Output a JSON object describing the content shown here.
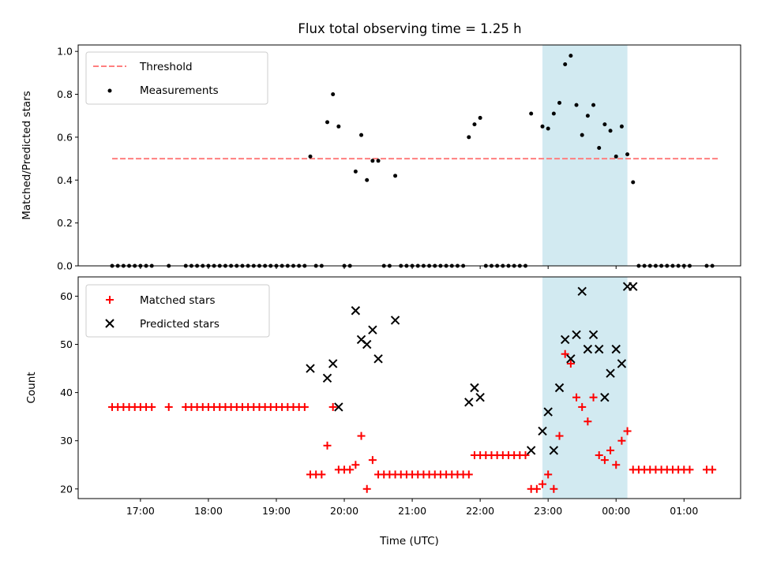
{
  "figure": {
    "title": "Flux total observing time = 1.25 h"
  },
  "chart_data": [
    {
      "type": "scatter",
      "panel": "top",
      "ylabel": "Matched/Predicted stars",
      "xlabel": "",
      "ylim": [
        0,
        1.03
      ],
      "yticks": [
        0.0,
        0.2,
        0.4,
        0.6,
        0.8,
        1.0
      ],
      "yticklabels": [
        "0.0",
        "0.2",
        "0.4",
        "0.6",
        "0.8",
        "1.0"
      ],
      "legend_position": "top-left",
      "threshold": {
        "name": "Threshold",
        "value": 0.5,
        "x_start": "16:35",
        "x_end": "01:30",
        "color": "#ff7f7f"
      },
      "series": [
        {
          "name": "Measurements",
          "marker": "dot",
          "color": "#000000",
          "points": [
            [
              "16:35",
              0
            ],
            [
              "16:40",
              0
            ],
            [
              "16:45",
              0
            ],
            [
              "16:50",
              0
            ],
            [
              "16:55",
              0
            ],
            [
              "17:00",
              0
            ],
            [
              "17:05",
              0
            ],
            [
              "17:10",
              0
            ],
            [
              "17:25",
              0
            ],
            [
              "17:40",
              0
            ],
            [
              "17:45",
              0
            ],
            [
              "17:50",
              0
            ],
            [
              "17:55",
              0
            ],
            [
              "18:00",
              0
            ],
            [
              "18:05",
              0
            ],
            [
              "18:10",
              0
            ],
            [
              "18:15",
              0
            ],
            [
              "18:20",
              0
            ],
            [
              "18:25",
              0
            ],
            [
              "18:30",
              0
            ],
            [
              "18:35",
              0
            ],
            [
              "18:40",
              0
            ],
            [
              "18:45",
              0
            ],
            [
              "18:50",
              0
            ],
            [
              "18:55",
              0
            ],
            [
              "19:00",
              0
            ],
            [
              "19:05",
              0
            ],
            [
              "19:10",
              0
            ],
            [
              "19:15",
              0
            ],
            [
              "19:20",
              0
            ],
            [
              "19:25",
              0
            ],
            [
              "19:30",
              0.51
            ],
            [
              "19:35",
              0
            ],
            [
              "19:40",
              0
            ],
            [
              "19:45",
              0.67
            ],
            [
              "19:50",
              0.8
            ],
            [
              "19:55",
              0.65
            ],
            [
              "20:00",
              0
            ],
            [
              "20:05",
              0
            ],
            [
              "20:10",
              0.44
            ],
            [
              "20:15",
              0.61
            ],
            [
              "20:20",
              0.4
            ],
            [
              "20:25",
              0.49
            ],
            [
              "20:30",
              0.49
            ],
            [
              "20:35",
              0
            ],
            [
              "20:40",
              0
            ],
            [
              "20:45",
              0.42
            ],
            [
              "20:50",
              0
            ],
            [
              "20:55",
              0
            ],
            [
              "21:00",
              0
            ],
            [
              "21:05",
              0
            ],
            [
              "21:10",
              0
            ],
            [
              "21:15",
              0
            ],
            [
              "21:20",
              0
            ],
            [
              "21:25",
              0
            ],
            [
              "21:30",
              0
            ],
            [
              "21:35",
              0
            ],
            [
              "21:40",
              0
            ],
            [
              "21:45",
              0
            ],
            [
              "21:50",
              0.6
            ],
            [
              "21:55",
              0.66
            ],
            [
              "22:00",
              0.69
            ],
            [
              "22:05",
              0
            ],
            [
              "22:10",
              0
            ],
            [
              "22:15",
              0
            ],
            [
              "22:20",
              0
            ],
            [
              "22:25",
              0
            ],
            [
              "22:30",
              0
            ],
            [
              "22:35",
              0
            ],
            [
              "22:40",
              0
            ],
            [
              "22:45",
              0.71
            ],
            [
              "22:55",
              0.65
            ],
            [
              "23:00",
              0.64
            ],
            [
              "23:05",
              0.71
            ],
            [
              "23:10",
              0.76
            ],
            [
              "23:15",
              0.94
            ],
            [
              "23:20",
              0.98
            ],
            [
              "23:25",
              0.75
            ],
            [
              "23:30",
              0.61
            ],
            [
              "23:35",
              0.7
            ],
            [
              "23:40",
              0.75
            ],
            [
              "23:45",
              0.55
            ],
            [
              "23:50",
              0.66
            ],
            [
              "23:55",
              0.63
            ],
            [
              "00:00",
              0.51
            ],
            [
              "00:05",
              0.65
            ],
            [
              "00:10",
              0.52
            ],
            [
              "00:15",
              0.39
            ],
            [
              "00:20",
              0
            ],
            [
              "00:25",
              0
            ],
            [
              "00:30",
              0
            ],
            [
              "00:35",
              0
            ],
            [
              "00:40",
              0
            ],
            [
              "00:45",
              0
            ],
            [
              "00:50",
              0
            ],
            [
              "00:55",
              0
            ],
            [
              "01:00",
              0
            ],
            [
              "01:05",
              0
            ],
            [
              "01:20",
              0
            ],
            [
              "01:25",
              0
            ]
          ]
        }
      ]
    },
    {
      "type": "scatter",
      "panel": "bottom",
      "ylabel": "Count",
      "xlabel": "Time (UTC)",
      "ylim": [
        18,
        64
      ],
      "yticks": [
        20,
        30,
        40,
        50,
        60
      ],
      "yticklabels": [
        "20",
        "30",
        "40",
        "50",
        "60"
      ],
      "legend_position": "top-left",
      "x_ticks": [
        "17:00",
        "18:00",
        "19:00",
        "20:00",
        "21:00",
        "22:00",
        "23:00",
        "00:00",
        "01:00"
      ],
      "series": [
        {
          "name": "Matched stars",
          "marker": "plus",
          "color": "#ff0000",
          "points": [
            [
              "16:35",
              37
            ],
            [
              "16:40",
              37
            ],
            [
              "16:45",
              37
            ],
            [
              "16:50",
              37
            ],
            [
              "16:55",
              37
            ],
            [
              "17:00",
              37
            ],
            [
              "17:05",
              37
            ],
            [
              "17:10",
              37
            ],
            [
              "17:25",
              37
            ],
            [
              "17:40",
              37
            ],
            [
              "17:45",
              37
            ],
            [
              "17:50",
              37
            ],
            [
              "17:55",
              37
            ],
            [
              "18:00",
              37
            ],
            [
              "18:05",
              37
            ],
            [
              "18:10",
              37
            ],
            [
              "18:15",
              37
            ],
            [
              "18:20",
              37
            ],
            [
              "18:25",
              37
            ],
            [
              "18:30",
              37
            ],
            [
              "18:35",
              37
            ],
            [
              "18:40",
              37
            ],
            [
              "18:45",
              37
            ],
            [
              "18:50",
              37
            ],
            [
              "18:55",
              37
            ],
            [
              "19:00",
              37
            ],
            [
              "19:05",
              37
            ],
            [
              "19:10",
              37
            ],
            [
              "19:15",
              37
            ],
            [
              "19:20",
              37
            ],
            [
              "19:25",
              37
            ],
            [
              "19:30",
              23
            ],
            [
              "19:35",
              23
            ],
            [
              "19:40",
              23
            ],
            [
              "19:45",
              29
            ],
            [
              "19:50",
              37
            ],
            [
              "19:55",
              24
            ],
            [
              "20:00",
              24
            ],
            [
              "20:05",
              24
            ],
            [
              "20:10",
              25
            ],
            [
              "20:15",
              31
            ],
            [
              "20:20",
              20
            ],
            [
              "20:25",
              26
            ],
            [
              "20:30",
              23
            ],
            [
              "20:35",
              23
            ],
            [
              "20:40",
              23
            ],
            [
              "20:45",
              23
            ],
            [
              "20:50",
              23
            ],
            [
              "20:55",
              23
            ],
            [
              "21:00",
              23
            ],
            [
              "21:05",
              23
            ],
            [
              "21:10",
              23
            ],
            [
              "21:15",
              23
            ],
            [
              "21:20",
              23
            ],
            [
              "21:25",
              23
            ],
            [
              "21:30",
              23
            ],
            [
              "21:35",
              23
            ],
            [
              "21:40",
              23
            ],
            [
              "21:45",
              23
            ],
            [
              "21:50",
              23
            ],
            [
              "21:55",
              27
            ],
            [
              "22:00",
              27
            ],
            [
              "22:05",
              27
            ],
            [
              "22:10",
              27
            ],
            [
              "22:15",
              27
            ],
            [
              "22:20",
              27
            ],
            [
              "22:25",
              27
            ],
            [
              "22:30",
              27
            ],
            [
              "22:35",
              27
            ],
            [
              "22:40",
              27
            ],
            [
              "22:45",
              20
            ],
            [
              "22:50",
              20
            ],
            [
              "22:55",
              21
            ],
            [
              "23:00",
              23
            ],
            [
              "23:05",
              20
            ],
            [
              "23:10",
              31
            ],
            [
              "23:15",
              48
            ],
            [
              "23:20",
              46
            ],
            [
              "23:25",
              39
            ],
            [
              "23:30",
              37
            ],
            [
              "23:35",
              34
            ],
            [
              "23:40",
              39
            ],
            [
              "23:45",
              27
            ],
            [
              "23:50",
              26
            ],
            [
              "23:55",
              28
            ],
            [
              "00:00",
              25
            ],
            [
              "00:05",
              30
            ],
            [
              "00:10",
              32
            ],
            [
              "00:15",
              24
            ],
            [
              "00:20",
              24
            ],
            [
              "00:25",
              24
            ],
            [
              "00:30",
              24
            ],
            [
              "00:35",
              24
            ],
            [
              "00:40",
              24
            ],
            [
              "00:45",
              24
            ],
            [
              "00:50",
              24
            ],
            [
              "00:55",
              24
            ],
            [
              "01:00",
              24
            ],
            [
              "01:05",
              24
            ],
            [
              "01:20",
              24
            ],
            [
              "01:25",
              24
            ]
          ]
        },
        {
          "name": "Predicted stars",
          "marker": "x",
          "color": "#000000",
          "points": [
            [
              "19:30",
              45
            ],
            [
              "19:45",
              43
            ],
            [
              "19:50",
              46
            ],
            [
              "19:55",
              37
            ],
            [
              "20:10",
              57
            ],
            [
              "20:15",
              51
            ],
            [
              "20:20",
              50
            ],
            [
              "20:25",
              53
            ],
            [
              "20:30",
              47
            ],
            [
              "20:45",
              55
            ],
            [
              "21:50",
              38
            ],
            [
              "21:55",
              41
            ],
            [
              "22:00",
              39
            ],
            [
              "22:45",
              28
            ],
            [
              "22:55",
              32
            ],
            [
              "23:00",
              36
            ],
            [
              "23:05",
              28
            ],
            [
              "23:10",
              41
            ],
            [
              "23:15",
              51
            ],
            [
              "23:20",
              47
            ],
            [
              "23:25",
              52
            ],
            [
              "23:30",
              61
            ],
            [
              "23:35",
              49
            ],
            [
              "23:40",
              52
            ],
            [
              "23:45",
              49
            ],
            [
              "23:50",
              39
            ],
            [
              "23:55",
              44
            ],
            [
              "00:00",
              49
            ],
            [
              "00:05",
              46
            ],
            [
              "00:10",
              62
            ],
            [
              "00:15",
              62
            ]
          ]
        }
      ]
    }
  ],
  "highlight": {
    "x_start": "22:55",
    "x_end": "00:10",
    "color": "#add8e6"
  }
}
